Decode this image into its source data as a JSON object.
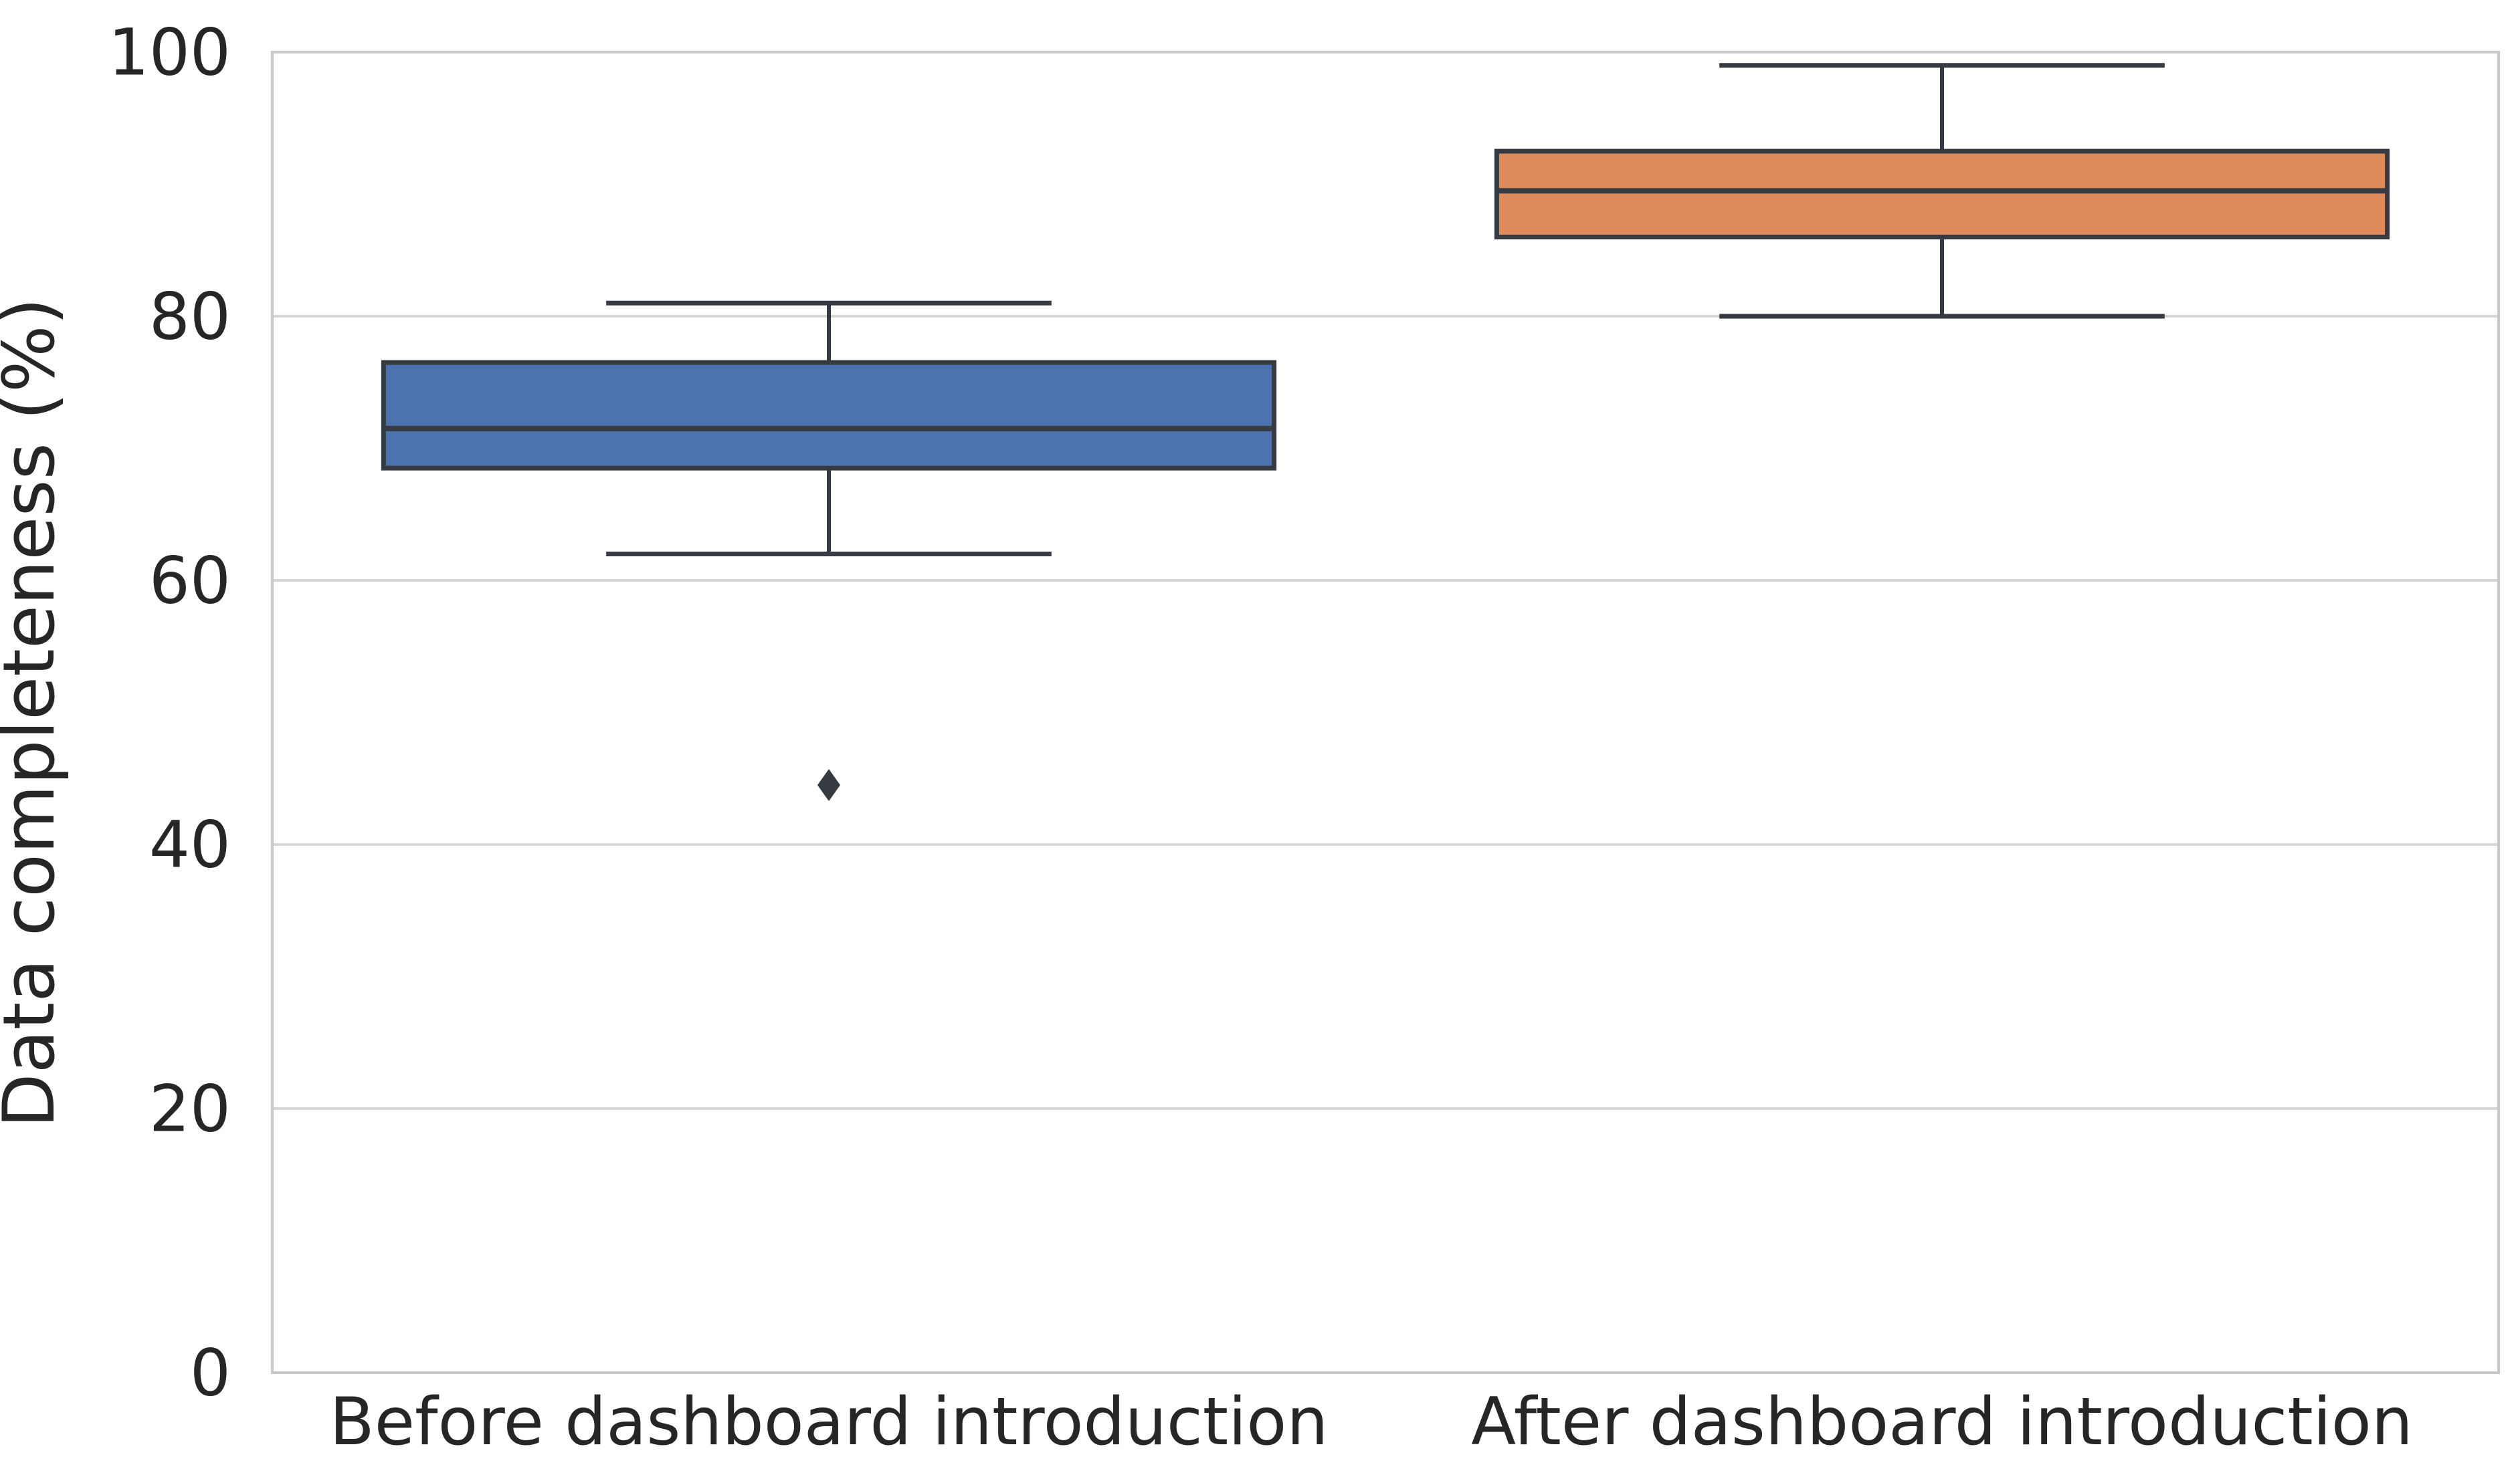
{
  "chart_data": {
    "type": "box",
    "title": "",
    "xlabel": "",
    "ylabel": "Data completeness (%)",
    "ylim": [
      0,
      100
    ],
    "yticks": [
      0,
      20,
      40,
      60,
      80,
      100
    ],
    "grid": "horizontal",
    "legend": "none",
    "categories": [
      "Before dashboard introduction",
      "After dashboard introduction"
    ],
    "series": [
      {
        "label": "Before dashboard introduction",
        "color": "#4C72B0",
        "whisker_low": 62,
        "q1": 68.5,
        "median": 71.5,
        "q3": 76.5,
        "whisker_high": 81,
        "outliers": [
          44.5
        ]
      },
      {
        "label": "After dashboard introduction",
        "color": "#DF8A5B",
        "whisker_low": 80,
        "q1": 86,
        "median": 89.5,
        "q3": 92.5,
        "whisker_high": 99,
        "outliers": []
      }
    ],
    "style": {
      "edge_color": "#353B41",
      "grid_color": "#D6D6D6",
      "spine_color": "#C8C8C8",
      "text_color": "#262626",
      "background": "#FFFFFF"
    }
  }
}
